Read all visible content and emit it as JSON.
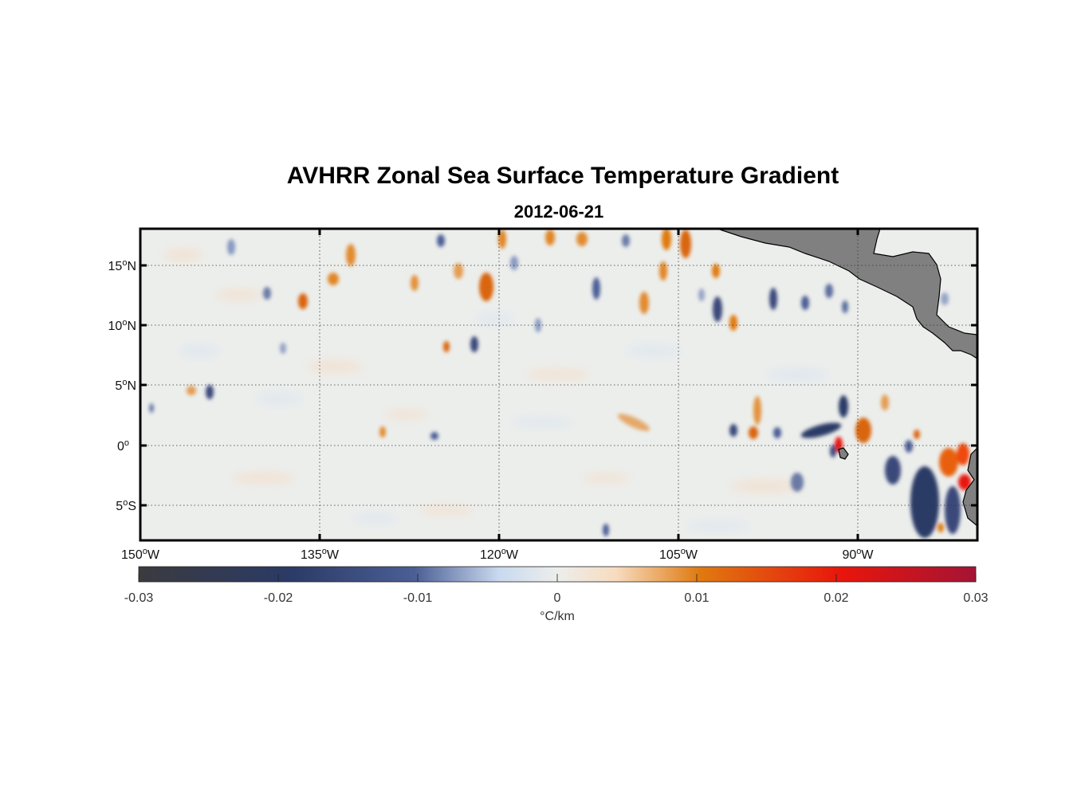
{
  "title": "AVHRR Zonal Sea Surface Temperature Gradient",
  "subtitle": "2012-06-21",
  "map": {
    "lon_range": [
      -150,
      -82
    ],
    "lat_range": [
      -8,
      18
    ],
    "lat_ticks": [
      {
        "value": 15,
        "label": "15",
        "sup": "o",
        "hemi": "N"
      },
      {
        "value": 10,
        "label": "10",
        "sup": "o",
        "hemi": "N"
      },
      {
        "value": 5,
        "label": "5",
        "sup": "o",
        "hemi": "N"
      },
      {
        "value": 0,
        "label": "0",
        "sup": "o",
        "hemi": ""
      },
      {
        "value": -5,
        "label": "5",
        "sup": "o",
        "hemi": "S"
      }
    ],
    "lon_ticks": [
      {
        "value": -150,
        "label": "150",
        "sup": "o",
        "hemi": "W"
      },
      {
        "value": -135,
        "label": "135",
        "sup": "o",
        "hemi": "W"
      },
      {
        "value": -120,
        "label": "120",
        "sup": "o",
        "hemi": "W"
      },
      {
        "value": -105,
        "label": "105",
        "sup": "o",
        "hemi": "W"
      },
      {
        "value": -90,
        "label": "90",
        "sup": "o",
        "hemi": "W"
      }
    ],
    "grid": "dotted",
    "land_color": "#808080",
    "ocean_background": "#eceeec"
  },
  "colorbar": {
    "range": [
      -0.03,
      0.03
    ],
    "ticks": [
      "-0.03",
      "-0.02",
      "-0.01",
      "0",
      "0.01",
      "0.02",
      "0.03"
    ],
    "unit_label": "°C/km",
    "colors": [
      "#3b3b3f",
      "#2b3a66",
      "#4b5f95",
      "#c9d9ef",
      "#eceeec",
      "#f7dcc0",
      "#e07a10",
      "#e8150c",
      "#a41435"
    ]
  }
}
